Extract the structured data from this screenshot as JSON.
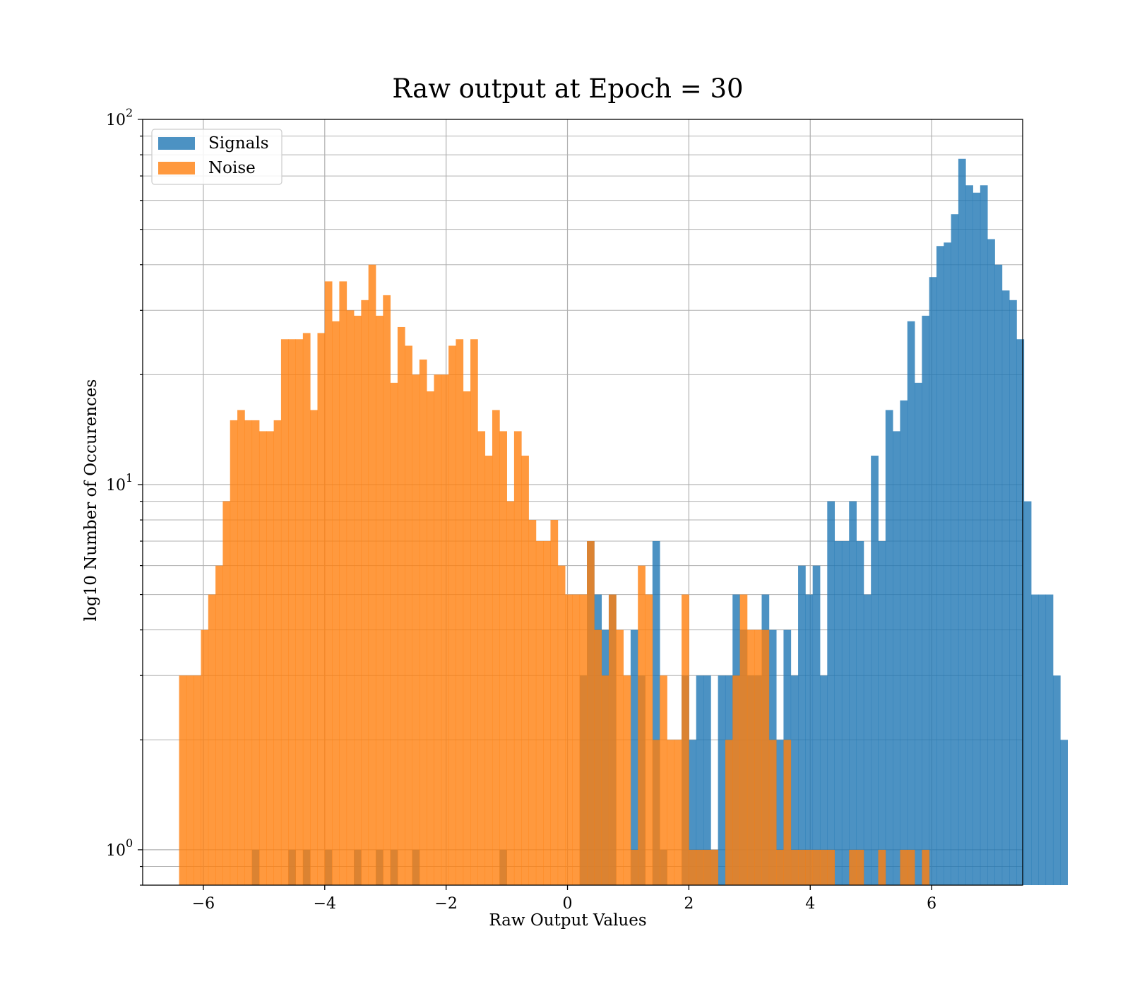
{
  "chart_data": {
    "type": "bar",
    "subtype": "overlaid histogram",
    "title": "Raw output at Epoch = 30",
    "xlabel": "Raw Output Values",
    "ylabel": "log10 Number of Occurences",
    "xlim": [
      -7.0,
      7.5
    ],
    "ylim": [
      0.8,
      100
    ],
    "yscale": "log",
    "grid": true,
    "legend_position": "top-left",
    "x_ticks": [
      -6,
      -4,
      -2,
      0,
      2,
      4,
      6
    ],
    "x_tick_labels": [
      "−6",
      "−4",
      "−2",
      "0",
      "2",
      "4",
      "6"
    ],
    "y_ticks": [
      1,
      10,
      100
    ],
    "y_tick_labels": [
      {
        "base": "10",
        "exp": "0"
      },
      {
        "base": "10",
        "exp": "1"
      },
      {
        "base": "10",
        "exp": "2"
      }
    ],
    "bin_width": 0.12,
    "series": [
      {
        "name": "Signals",
        "color": "#1f77b4",
        "opacity": 0.8,
        "x_start": -5.2,
        "values": [
          1,
          0,
          0,
          0,
          0,
          1,
          0,
          1,
          0,
          0,
          1,
          0,
          0,
          0,
          1,
          0,
          0,
          1,
          0,
          1,
          0,
          0,
          1,
          0,
          0,
          0,
          0,
          0,
          0,
          0,
          0,
          0,
          0,
          0,
          1,
          0,
          0,
          0,
          0,
          0,
          0,
          0,
          0,
          0,
          0,
          3,
          7,
          5,
          4,
          5,
          0,
          0,
          4,
          3,
          0,
          7,
          1,
          0,
          0,
          3,
          2,
          3,
          3,
          1,
          3,
          3,
          5,
          4,
          3,
          3,
          5,
          4,
          2,
          4,
          3,
          6,
          5,
          6,
          3,
          9,
          7,
          7,
          9,
          7,
          5,
          12,
          7,
          16,
          14,
          17,
          28,
          19,
          29,
          37,
          45,
          46,
          55,
          78,
          66,
          63,
          66,
          47,
          40,
          34,
          32,
          25,
          9,
          5,
          5,
          5,
          3,
          2
        ]
      },
      {
        "name": "Noise",
        "color": "#ff7f0e",
        "opacity": 0.8,
        "x_start": -6.4,
        "values": [
          3,
          3,
          3,
          4,
          5,
          6,
          9,
          15,
          16,
          15,
          15,
          14,
          14,
          15,
          25,
          25,
          25,
          26,
          16,
          26,
          36,
          28,
          36,
          30,
          29,
          32,
          40,
          29,
          33,
          19,
          27,
          24,
          20,
          22,
          18,
          20,
          20,
          24,
          25,
          18,
          25,
          14,
          12,
          16,
          14,
          9,
          14,
          12,
          8,
          7,
          7,
          8,
          6,
          5,
          5,
          5,
          7,
          4,
          3,
          5,
          4,
          3,
          1,
          6,
          5,
          2,
          3,
          2,
          2,
          5,
          1,
          1,
          1,
          1,
          0,
          2,
          3,
          5,
          4,
          4,
          4,
          2,
          1,
          2,
          1,
          1,
          1,
          1,
          1,
          1,
          0,
          0,
          1,
          1,
          0,
          0,
          1,
          0,
          0,
          1,
          1,
          0,
          1,
          0,
          0,
          0
        ]
      }
    ]
  }
}
